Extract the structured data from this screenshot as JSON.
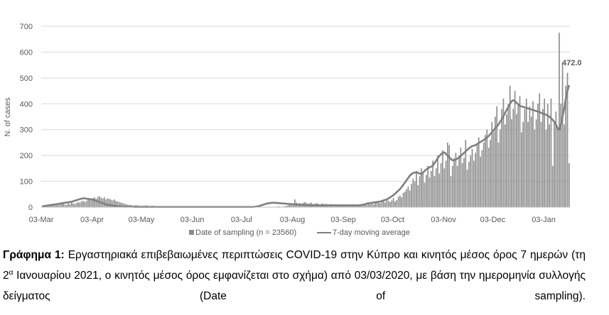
{
  "chart_data": {
    "type": "bar",
    "ylabel": "N. of cases",
    "ylim": [
      0,
      700
    ],
    "yticks": [
      0,
      100,
      200,
      300,
      400,
      500,
      600,
      700
    ],
    "grid": true,
    "x_tick_labels": [
      "03-Mar",
      "03-Apr",
      "03-May",
      "03-Jun",
      "03-Jul",
      "03-Aug",
      "03-Sep",
      "03-Oct",
      "03-Nov",
      "03-Dec",
      "03-Jan"
    ],
    "legend_position": "bottom",
    "series": [
      {
        "name": "Date of sampling (n = 23560)",
        "color": "#8c8c8c",
        "start_date": "2020-03-03",
        "values": [
          2,
          3,
          4,
          6,
          5,
          8,
          9,
          7,
          10,
          12,
          8,
          11,
          14,
          13,
          10,
          9,
          15,
          12,
          18,
          14,
          13,
          16,
          20,
          18,
          22,
          25,
          20,
          24,
          28,
          30,
          26,
          35,
          38,
          32,
          40,
          42,
          36,
          34,
          38,
          30,
          34,
          32,
          29,
          26,
          30,
          24,
          22,
          20,
          18,
          16,
          14,
          12,
          10,
          9,
          8,
          7,
          6,
          8,
          7,
          6,
          5,
          6,
          5,
          7,
          6,
          5,
          4,
          6,
          5,
          3,
          4,
          3,
          2,
          3,
          4,
          3,
          2,
          3,
          2,
          2,
          3,
          2,
          1,
          2,
          3,
          2,
          1,
          2,
          1,
          1,
          2,
          1,
          2,
          1,
          2,
          1,
          1,
          2,
          1,
          1,
          2,
          1,
          0,
          1,
          2,
          1,
          1,
          2,
          3,
          2,
          1,
          2,
          1,
          1,
          2,
          1,
          0,
          1,
          1,
          0,
          1,
          2,
          1,
          1,
          0,
          1,
          2,
          1,
          0,
          1,
          1,
          2,
          1,
          0,
          1,
          1,
          0,
          1,
          2,
          1,
          0,
          1,
          1,
          2,
          3,
          2,
          1,
          2,
          4,
          6,
          8,
          10,
          12,
          15,
          30,
          18,
          14,
          16,
          13,
          17,
          20,
          16,
          14,
          15,
          18,
          13,
          12,
          16,
          14,
          10,
          12,
          15,
          11,
          13,
          9,
          10,
          12,
          8,
          11,
          10,
          9,
          7,
          8,
          10,
          6,
          7,
          5,
          8,
          6,
          5,
          4,
          6,
          5,
          4,
          6,
          8,
          7,
          9,
          10,
          12,
          11,
          14,
          10,
          16,
          18,
          20,
          15,
          22,
          25,
          18,
          30,
          24,
          20,
          26,
          35,
          22,
          28,
          40,
          45,
          38,
          55,
          60,
          70,
          80,
          65,
          90,
          110,
          100,
          140,
          85,
          120,
          150,
          130,
          95,
          125,
          160,
          115,
          140,
          180,
          120,
          150,
          200,
          130,
          170,
          220,
          150,
          180,
          250,
          240,
          120,
          160,
          190,
          210,
          160,
          200,
          230,
          170,
          190,
          260,
          145,
          175,
          200,
          225,
          180,
          210,
          240,
          270,
          195,
          220,
          250,
          280,
          300,
          230,
          260,
          330,
          290,
          350,
          390,
          250,
          300,
          380,
          420,
          320,
          360,
          400,
          470,
          340,
          380,
          450,
          360,
          400,
          430,
          290,
          330,
          380,
          420,
          330,
          390,
          350,
          410,
          300,
          340,
          400,
          440,
          330,
          380,
          420,
          300,
          400,
          320,
          420,
          160,
          330,
          370,
          305,
          675,
          400,
          560,
          320,
          470,
          520,
          170
        ]
      },
      {
        "name": "7-day moving average",
        "color": "#7f7f7f",
        "start_date": "2020-03-03",
        "values": [
          3,
          4,
          5,
          6,
          7,
          8,
          9,
          10,
          11,
          12,
          13,
          14,
          15,
          16,
          17,
          18,
          19,
          20,
          21,
          23,
          25,
          27,
          29,
          31,
          33,
          34,
          34,
          33,
          32,
          31,
          30,
          29,
          27,
          25,
          22,
          20,
          18,
          15,
          13,
          11,
          9,
          8,
          7,
          6,
          5,
          4,
          4,
          3,
          3,
          3,
          2,
          2,
          2,
          2,
          2,
          2,
          1,
          1,
          1,
          1,
          1,
          1,
          1,
          1,
          1,
          1,
          1,
          1,
          1,
          1,
          1,
          1,
          1,
          1,
          1,
          1,
          1,
          1,
          1,
          1,
          1,
          1,
          1,
          1,
          1,
          1,
          1,
          1,
          1,
          1,
          1,
          1,
          1,
          1,
          1,
          1,
          1,
          1,
          1,
          1,
          1,
          1,
          1,
          1,
          1,
          1,
          1,
          1,
          1,
          1,
          1,
          1,
          1,
          1,
          1,
          1,
          1,
          1,
          1,
          1,
          1,
          1,
          1,
          1,
          1,
          1,
          1,
          1,
          1,
          1,
          2,
          3,
          4,
          6,
          8,
          10,
          12,
          14,
          15,
          16,
          17,
          17,
          17,
          16,
          16,
          15,
          15,
          14,
          14,
          13,
          13,
          12,
          12,
          11,
          11,
          10,
          10,
          9,
          9,
          9,
          8,
          8,
          8,
          7,
          7,
          7,
          7,
          7,
          7,
          7,
          7,
          7,
          7,
          7,
          7,
          7,
          7,
          7,
          7,
          7,
          7,
          7,
          7,
          7,
          7,
          7,
          7,
          7,
          7,
          7,
          7,
          7,
          7,
          7,
          8,
          9,
          10,
          12,
          14,
          15,
          16,
          17,
          18,
          19,
          20,
          21,
          22,
          24,
          26,
          28,
          30,
          34,
          38,
          42,
          46,
          52,
          58,
          64,
          70,
          78,
          86,
          95,
          104,
          113,
          122,
          128,
          132,
          134,
          135,
          133,
          130,
          128,
          134,
          140,
          146,
          150,
          154,
          157,
          160,
          170,
          180,
          190,
          198,
          205,
          210,
          212,
          206,
          200,
          193,
          187,
          181,
          182,
          184,
          188,
          193,
          198,
          204,
          210,
          216,
          222,
          228,
          232,
          236,
          238,
          240,
          244,
          248,
          252,
          256,
          260,
          264,
          270,
          275,
          283,
          290,
          298,
          305,
          312,
          320,
          330,
          340,
          352,
          364,
          376,
          388,
          400,
          410,
          414,
          410,
          404,
          398,
          392,
          390,
          388,
          386,
          384,
          382,
          380,
          378,
          376,
          374,
          372,
          370,
          368,
          365,
          362,
          360,
          358,
          354,
          350,
          344,
          338,
          330,
          320,
          305,
          300,
          320,
          350,
          380,
          420,
          450,
          472
        ]
      }
    ],
    "annotation": "472.0"
  },
  "caption": {
    "label": "Γράφημα 1:",
    "text_1": "Εργαστηριακά επιβεβαιωμένες περιπτώσεις COVID-19 στην Κύπρο και κινητός μέσος όρος 7 ημερών (τη 2",
    "sup": "α",
    "text_2": " Ιανουαρίου 2021, ο κινητός μέσος όρος εμφανίζεται στο σχήμα) από 03/03/2020, με βάση την ημερομηνία συλλογής δείγματος (Date of sampling)."
  }
}
